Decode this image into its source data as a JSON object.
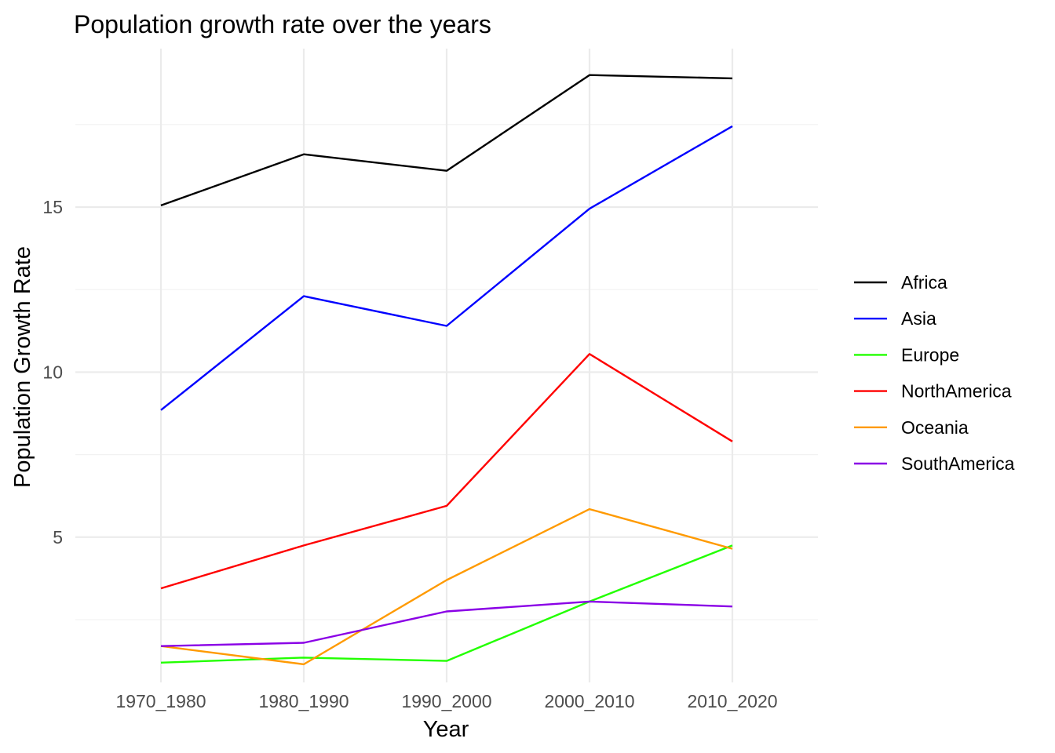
{
  "chart_data": {
    "type": "line",
    "title": "Population growth rate over the years",
    "xlabel": "Year",
    "ylabel": "Population Growth Rate",
    "categories": [
      "1970_1980",
      "1980_1990",
      "1990_2000",
      "2000_2010",
      "2010_2020"
    ],
    "ylim": [
      0.6,
      19.8
    ],
    "yticks": [
      5,
      10,
      15
    ],
    "grid": true,
    "legend_position": "right",
    "series": [
      {
        "name": "Africa",
        "color": "#000000",
        "values": [
          15.05,
          16.6,
          16.1,
          19.0,
          18.9
        ]
      },
      {
        "name": "Asia",
        "color": "#0000ff",
        "values": [
          8.85,
          12.3,
          11.4,
          14.95,
          17.45
        ]
      },
      {
        "name": "Europe",
        "color": "#22ff00",
        "values": [
          1.2,
          1.35,
          1.25,
          3.05,
          4.75
        ]
      },
      {
        "name": "NorthAmerica",
        "color": "#ff0000",
        "values": [
          3.45,
          4.75,
          5.95,
          10.55,
          7.9
        ]
      },
      {
        "name": "Oceania",
        "color": "#ff9a00",
        "values": [
          1.7,
          1.15,
          3.7,
          5.85,
          4.65
        ]
      },
      {
        "name": "SouthAmerica",
        "color": "#8a00e6",
        "values": [
          1.7,
          1.8,
          2.75,
          3.05,
          2.9
        ]
      }
    ]
  }
}
